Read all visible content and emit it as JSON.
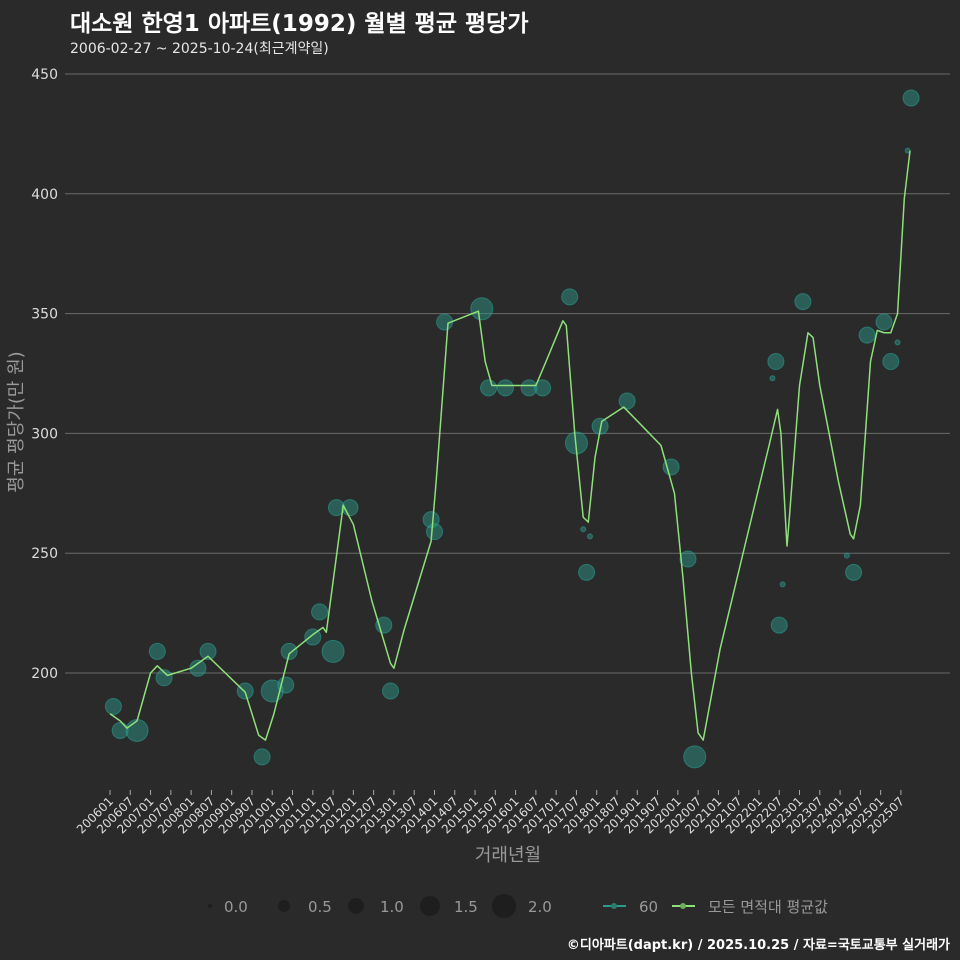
{
  "title": "대소원 한영1 아파트(1992) 월별 평균 평당가",
  "subtitle": "2006-02-27 ~ 2025-10-24(최근계약일)",
  "caption": "©디아파트(dapt.kr) / 2025.10.25 / 자료=국토교통부 실거래가",
  "chart_data": {
    "type": "line",
    "xlabel": "거래년월",
    "ylabel": "평균 평당가(만 원)",
    "x_unit": "months since 200601",
    "ylim": [
      151,
      458
    ],
    "yticks": [
      200,
      250,
      300,
      350,
      400,
      450
    ],
    "xticks": [
      "200601",
      "200607",
      "200701",
      "200707",
      "200801",
      "200807",
      "200901",
      "200907",
      "201001",
      "201007",
      "201101",
      "201107",
      "201201",
      "201207",
      "201301",
      "201307",
      "201401",
      "201407",
      "201501",
      "201507",
      "201601",
      "201607",
      "201701",
      "201707",
      "201801",
      "201807",
      "201901",
      "201907",
      "202001",
      "202007",
      "202101",
      "202107",
      "202201",
      "202207",
      "202301",
      "202307",
      "202401",
      "202407",
      "202501",
      "202507"
    ],
    "grid": "horizontal",
    "series": [
      {
        "name": "60",
        "type": "scatter",
        "color": "#2a9d8f",
        "points": [
          [
            1,
            186,
            1
          ],
          [
            3,
            176,
            1
          ],
          [
            8,
            176,
            2
          ],
          [
            14,
            209,
            1
          ],
          [
            16,
            198,
            1
          ],
          [
            26,
            202,
            1
          ],
          [
            29,
            209,
            1
          ],
          [
            40,
            192.5,
            1
          ],
          [
            45,
            165,
            1
          ],
          [
            48,
            192.5,
            2
          ],
          [
            52,
            195,
            1
          ],
          [
            53,
            209,
            1
          ],
          [
            60,
            215,
            1
          ],
          [
            62,
            225.5,
            1
          ],
          [
            66,
            209,
            2
          ],
          [
            67,
            269,
            1
          ],
          [
            71,
            269,
            1
          ],
          [
            81,
            220,
            1
          ],
          [
            83,
            192.5,
            1
          ],
          [
            95,
            264,
            1
          ],
          [
            96,
            259,
            1
          ],
          [
            99,
            346.5,
            1
          ],
          [
            110,
            352,
            2
          ],
          [
            112,
            319,
            1
          ],
          [
            117,
            319,
            1
          ],
          [
            124,
            319,
            1
          ],
          [
            128,
            319,
            1
          ],
          [
            136,
            357,
            1
          ],
          [
            138,
            296,
            2
          ],
          [
            141,
            242,
            1
          ],
          [
            145,
            303,
            1
          ],
          [
            153,
            313.5,
            1
          ],
          [
            166,
            286,
            1
          ],
          [
            171,
            247.6,
            1
          ],
          [
            173,
            165,
            2
          ],
          [
            197,
            330,
            1
          ],
          [
            198,
            220,
            1
          ],
          [
            205,
            355,
            1
          ],
          [
            220,
            242,
            1
          ],
          [
            224,
            341,
            1
          ],
          [
            229,
            346.5,
            1
          ],
          [
            231,
            330,
            1
          ],
          [
            237,
            440,
            1
          ],
          [
            140,
            260,
            0
          ],
          [
            142,
            257,
            0
          ],
          [
            199,
            237,
            0
          ],
          [
            218,
            249,
            0
          ],
          [
            233,
            338,
            0
          ],
          [
            236,
            418,
            0
          ],
          [
            196,
            323,
            0
          ]
        ]
      },
      {
        "name": "모든 면적대 평균값",
        "type": "line",
        "color": "#8ee07a",
        "points": [
          [
            0,
            183
          ],
          [
            3,
            180
          ],
          [
            5,
            177
          ],
          [
            8,
            180
          ],
          [
            12,
            200
          ],
          [
            14,
            203
          ],
          [
            17,
            199
          ],
          [
            24,
            202
          ],
          [
            29,
            207
          ],
          [
            40,
            192
          ],
          [
            44,
            174
          ],
          [
            46,
            172
          ],
          [
            48.5,
            183
          ],
          [
            53,
            208
          ],
          [
            60,
            216
          ],
          [
            63,
            219
          ],
          [
            64,
            217
          ],
          [
            69,
            270
          ],
          [
            72,
            262
          ],
          [
            77.5,
            230
          ],
          [
            83,
            204
          ],
          [
            84,
            202
          ],
          [
            87,
            218
          ],
          [
            95,
            255
          ],
          [
            96.5,
            280
          ],
          [
            100,
            346
          ],
          [
            109,
            351
          ],
          [
            111,
            330
          ],
          [
            113,
            320
          ],
          [
            126,
            320
          ],
          [
            129,
            330
          ],
          [
            134,
            347
          ],
          [
            135,
            345
          ],
          [
            137.5,
            300
          ],
          [
            140,
            265
          ],
          [
            141.5,
            263
          ],
          [
            143.5,
            290
          ],
          [
            145.5,
            305
          ],
          [
            152,
            311
          ],
          [
            163,
            295
          ],
          [
            167,
            275
          ],
          [
            169.5,
            240
          ],
          [
            172,
            200
          ],
          [
            174,
            175
          ],
          [
            175.5,
            172
          ],
          [
            180.5,
            210
          ],
          [
            189,
            260
          ],
          [
            195,
            295
          ],
          [
            197.5,
            310
          ],
          [
            198.5,
            300
          ],
          [
            200,
            260
          ],
          [
            200.3,
            253
          ],
          [
            201,
            265
          ],
          [
            204,
            320
          ],
          [
            206.5,
            342
          ],
          [
            208,
            340
          ],
          [
            210,
            320
          ],
          [
            215.5,
            280
          ],
          [
            219,
            258
          ],
          [
            220,
            256
          ],
          [
            222,
            270
          ],
          [
            225,
            330
          ],
          [
            227,
            343
          ],
          [
            229,
            342
          ],
          [
            231,
            342
          ],
          [
            233,
            350
          ],
          [
            235,
            398
          ],
          [
            236.7,
            418
          ]
        ]
      }
    ],
    "size_legend": {
      "labels": [
        "0.0",
        "0.5",
        "1.0",
        "1.5",
        "2.0"
      ],
      "values": [
        0,
        0.5,
        1,
        1.5,
        2
      ]
    },
    "legend_position": "bottom"
  }
}
